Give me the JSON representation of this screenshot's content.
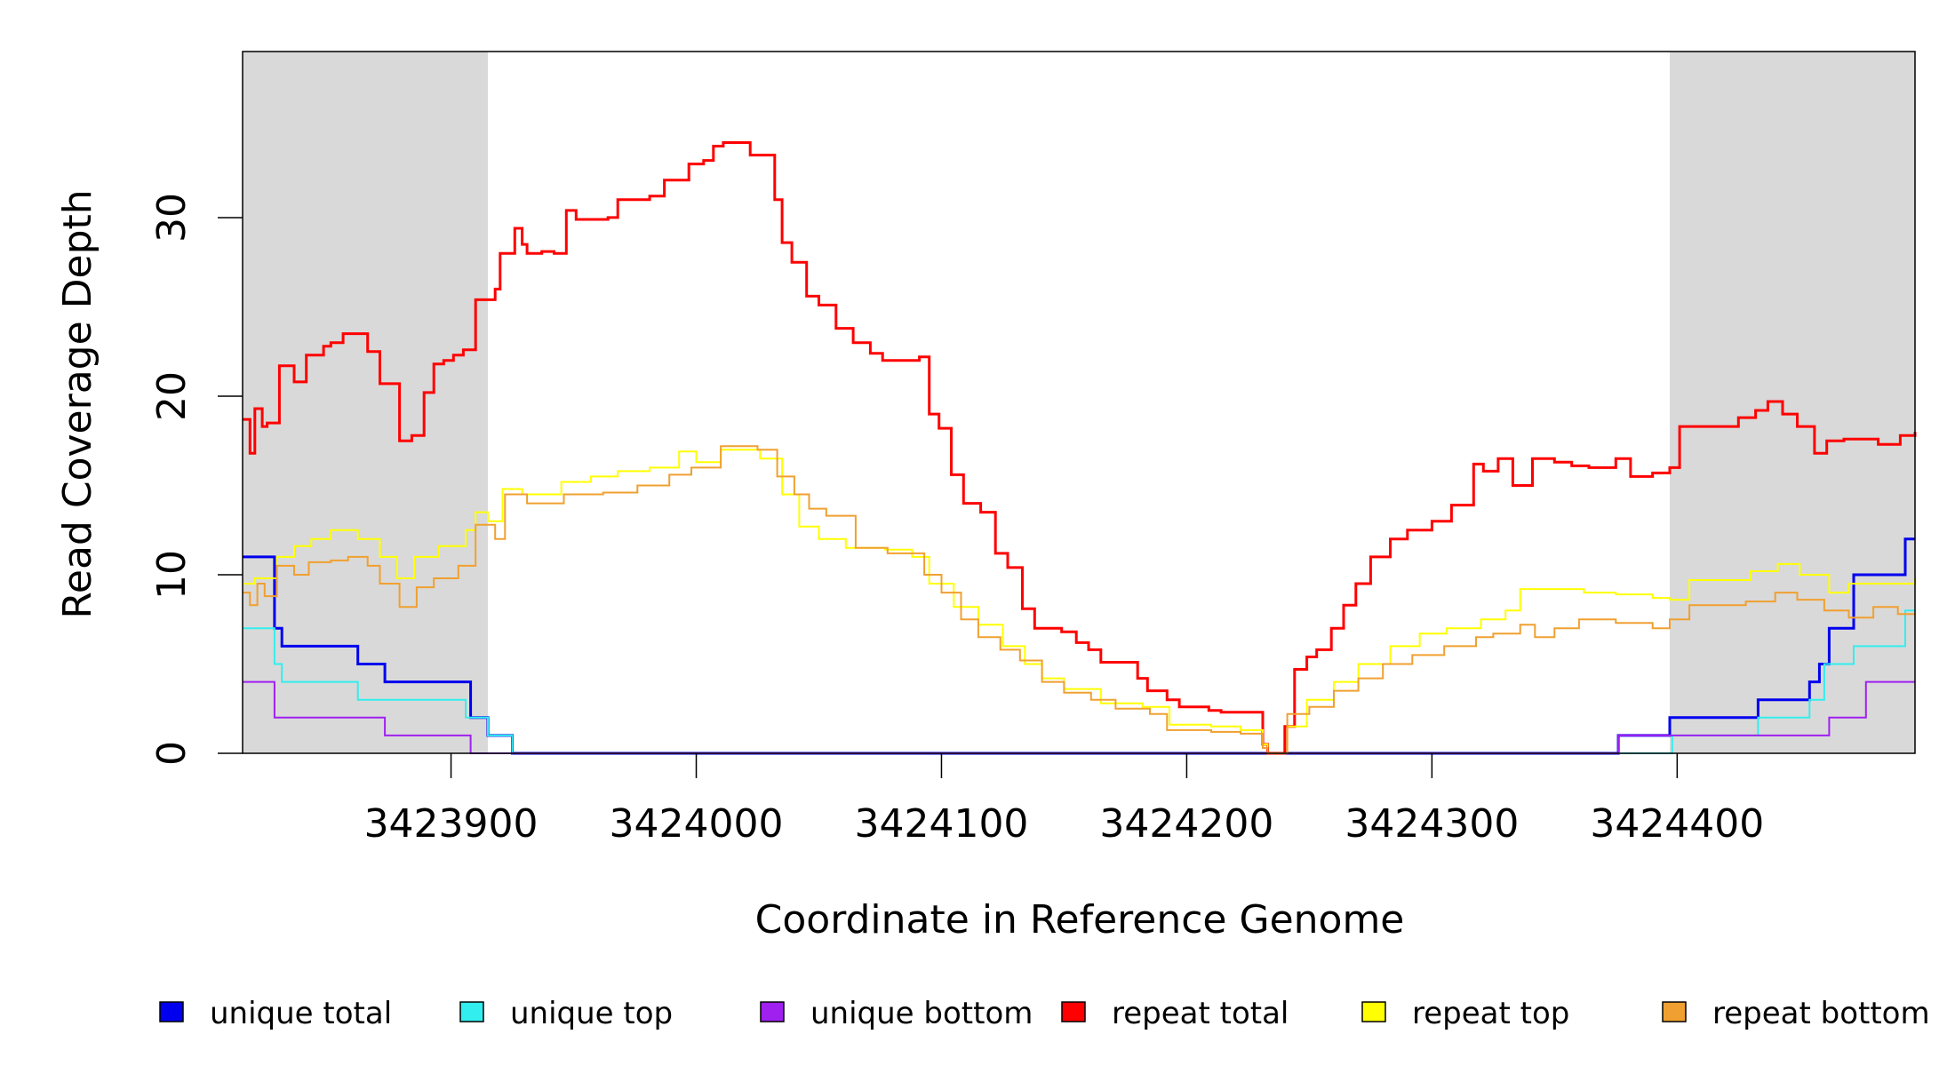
{
  "chart_data": {
    "type": "line",
    "title": "",
    "xlabel": "Coordinate in Reference Genome",
    "ylabel": "Read Coverage Depth",
    "xlim": [
      3423815,
      3424497
    ],
    "ylim": [
      0,
      39.3
    ],
    "x_ticks": [
      3423900,
      3424000,
      3424100,
      3424200,
      3424300,
      3424400
    ],
    "y_ticks": [
      0,
      10,
      20,
      30
    ],
    "shaded_regions": [
      [
        3423815,
        3423915
      ],
      [
        3424397,
        3424497
      ]
    ],
    "series": [
      {
        "name": "unique total",
        "color": "#0000ee",
        "stroke": 3,
        "points": [
          [
            3423815,
            11
          ],
          [
            3423828,
            7
          ],
          [
            3423831,
            6
          ],
          [
            3423862,
            5
          ],
          [
            3423873,
            4
          ],
          [
            3423908,
            2
          ],
          [
            3423915,
            1
          ],
          [
            3423925,
            0
          ],
          [
            3424375,
            0
          ],
          [
            3424376,
            1
          ],
          [
            3424397,
            2
          ],
          [
            3424433,
            3
          ],
          [
            3424454,
            4
          ],
          [
            3424458,
            5
          ],
          [
            3424462,
            7
          ],
          [
            3424472,
            10
          ],
          [
            3424493,
            12
          ],
          [
            3424497,
            12
          ]
        ]
      },
      {
        "name": "unique top",
        "color": "#33eeee",
        "stroke": 2,
        "points": [
          [
            3423815,
            7
          ],
          [
            3423828,
            5
          ],
          [
            3423831,
            4
          ],
          [
            3423862,
            3
          ],
          [
            3423906,
            2
          ],
          [
            3423915,
            1
          ],
          [
            3423925,
            0
          ],
          [
            3424397,
            0
          ],
          [
            3424398,
            1
          ],
          [
            3424433,
            2
          ],
          [
            3424454,
            3
          ],
          [
            3424460,
            5
          ],
          [
            3424472,
            6
          ],
          [
            3424493,
            8
          ],
          [
            3424497,
            8
          ]
        ]
      },
      {
        "name": "unique bottom",
        "color": "#a020f0",
        "stroke": 2,
        "points": [
          [
            3423815,
            4
          ],
          [
            3423828,
            2
          ],
          [
            3423873,
            1
          ],
          [
            3423908,
            0
          ],
          [
            3424375,
            0
          ],
          [
            3424376,
            1
          ],
          [
            3424448,
            1
          ],
          [
            3424462,
            2
          ],
          [
            3424477,
            4
          ],
          [
            3424497,
            4
          ]
        ]
      },
      {
        "name": "repeat total",
        "color": "#ff0000",
        "stroke": 3,
        "points": [
          [
            3423815,
            18.7
          ],
          [
            3423818,
            16.8
          ],
          [
            3423820,
            19.3
          ],
          [
            3423823,
            18.3
          ],
          [
            3423825,
            18.5
          ],
          [
            3423830,
            21.7
          ],
          [
            3423836,
            20.8
          ],
          [
            3423841,
            22.3
          ],
          [
            3423848,
            22.8
          ],
          [
            3423851,
            23.0
          ],
          [
            3423856,
            23.5
          ],
          [
            3423866,
            22.5
          ],
          [
            3423871,
            20.7
          ],
          [
            3423879,
            17.5
          ],
          [
            3423884,
            17.8
          ],
          [
            3423889,
            20.2
          ],
          [
            3423893,
            21.8
          ],
          [
            3423897,
            22.0
          ],
          [
            3423901,
            22.3
          ],
          [
            3423905,
            22.6
          ],
          [
            3423910,
            25.4
          ],
          [
            3423918,
            26.0
          ],
          [
            3423920,
            28.0
          ],
          [
            3423926,
            29.4
          ],
          [
            3423929,
            28.5
          ],
          [
            3423931,
            28.0
          ],
          [
            3423937,
            28.1
          ],
          [
            3423942,
            28.0
          ],
          [
            3423947,
            30.4
          ],
          [
            3423951,
            29.9
          ],
          [
            3423964,
            30.0
          ],
          [
            3423968,
            31.0
          ],
          [
            3423981,
            31.2
          ],
          [
            3423987,
            32.1
          ],
          [
            3423997,
            33.0
          ],
          [
            3424003,
            33.2
          ],
          [
            3424007,
            34.0
          ],
          [
            3424011,
            34.2
          ],
          [
            3424022,
            33.5
          ],
          [
            3424032,
            31.0
          ],
          [
            3424035,
            28.6
          ],
          [
            3424039,
            27.5
          ],
          [
            3424045,
            25.6
          ],
          [
            3424050,
            25.1
          ],
          [
            3424057,
            23.8
          ],
          [
            3424064,
            23.0
          ],
          [
            3424071,
            22.4
          ],
          [
            3424076,
            22.0
          ],
          [
            3424091,
            22.2
          ],
          [
            3424095,
            19.0
          ],
          [
            3424099,
            18.2
          ],
          [
            3424104,
            15.6
          ],
          [
            3424109,
            14.0
          ],
          [
            3424116,
            13.5
          ],
          [
            3424122,
            11.2
          ],
          [
            3424127,
            10.4
          ],
          [
            3424133,
            8.1
          ],
          [
            3424138,
            7.0
          ],
          [
            3424149,
            6.8
          ],
          [
            3424155,
            6.2
          ],
          [
            3424160,
            5.8
          ],
          [
            3424165,
            5.1
          ],
          [
            3424180,
            4.2
          ],
          [
            3424184,
            3.5
          ],
          [
            3424192,
            3.0
          ],
          [
            3424197,
            2.6
          ],
          [
            3424209,
            2.4
          ],
          [
            3424214,
            2.3
          ],
          [
            3424231,
            0.5
          ],
          [
            3424233,
            0
          ],
          [
            3424240,
            1.5
          ],
          [
            3424244,
            4.7
          ],
          [
            3424249,
            5.4
          ],
          [
            3424253,
            5.8
          ],
          [
            3424259,
            7.0
          ],
          [
            3424264,
            8.3
          ],
          [
            3424269,
            9.5
          ],
          [
            3424275,
            11.0
          ],
          [
            3424283,
            12.0
          ],
          [
            3424290,
            12.5
          ],
          [
            3424300,
            13.0
          ],
          [
            3424308,
            13.9
          ],
          [
            3424317,
            16.2
          ],
          [
            3424321,
            15.8
          ],
          [
            3424327,
            16.5
          ],
          [
            3424333,
            15.0
          ],
          [
            3424341,
            16.5
          ],
          [
            3424350,
            16.3
          ],
          [
            3424357,
            16.1
          ],
          [
            3424364,
            16.0
          ],
          [
            3424375,
            16.5
          ],
          [
            3424381,
            15.5
          ],
          [
            3424390,
            15.7
          ],
          [
            3424397,
            16.0
          ],
          [
            3424401,
            18.3
          ],
          [
            3424425,
            18.8
          ],
          [
            3424432,
            19.2
          ],
          [
            3424437,
            19.7
          ],
          [
            3424443,
            19.0
          ],
          [
            3424449,
            18.3
          ],
          [
            3424456,
            16.8
          ],
          [
            3424461,
            17.5
          ],
          [
            3424468,
            17.6
          ],
          [
            3424482,
            17.3
          ],
          [
            3424491,
            17.8
          ],
          [
            3424497,
            18.0
          ]
        ]
      },
      {
        "name": "repeat top",
        "color": "#ffff00",
        "stroke": 2,
        "points": [
          [
            3423815,
            9.5
          ],
          [
            3423820,
            9.8
          ],
          [
            3423829,
            11.0
          ],
          [
            3423836,
            11.6
          ],
          [
            3423843,
            12.0
          ],
          [
            3423851,
            12.5
          ],
          [
            3423862,
            12.0
          ],
          [
            3423871,
            11.0
          ],
          [
            3423878,
            9.8
          ],
          [
            3423885,
            11.0
          ],
          [
            3423895,
            11.6
          ],
          [
            3423906,
            12.5
          ],
          [
            3423910,
            13.5
          ],
          [
            3423915,
            13.0
          ],
          [
            3423921,
            14.8
          ],
          [
            3423929,
            14.5
          ],
          [
            3423935,
            14.5
          ],
          [
            3423945,
            15.2
          ],
          [
            3423957,
            15.5
          ],
          [
            3423968,
            15.8
          ],
          [
            3423981,
            16.0
          ],
          [
            3423993,
            16.9
          ],
          [
            3424000,
            16.3
          ],
          [
            3424010,
            17.0
          ],
          [
            3424026,
            16.5
          ],
          [
            3424035,
            14.5
          ],
          [
            3424042,
            12.7
          ],
          [
            3424050,
            12.0
          ],
          [
            3424061,
            11.5
          ],
          [
            3424077,
            11.4
          ],
          [
            3424088,
            11.0
          ],
          [
            3424095,
            9.5
          ],
          [
            3424105,
            8.2
          ],
          [
            3424115,
            7.2
          ],
          [
            3424125,
            6.0
          ],
          [
            3424134,
            5.0
          ],
          [
            3424141,
            4.2
          ],
          [
            3424150,
            3.6
          ],
          [
            3424165,
            2.8
          ],
          [
            3424182,
            2.6
          ],
          [
            3424193,
            1.6
          ],
          [
            3424210,
            1.5
          ],
          [
            3424222,
            1.3
          ],
          [
            3424231,
            0.5
          ],
          [
            3424233,
            0
          ],
          [
            3424241,
            1.5
          ],
          [
            3424249,
            3.0
          ],
          [
            3424260,
            4.0
          ],
          [
            3424270,
            5.0
          ],
          [
            3424283,
            6.0
          ],
          [
            3424295,
            6.7
          ],
          [
            3424306,
            7.0
          ],
          [
            3424320,
            7.5
          ],
          [
            3424330,
            8.0
          ],
          [
            3424336,
            9.2
          ],
          [
            3424350,
            9.2
          ],
          [
            3424362,
            9.0
          ],
          [
            3424375,
            8.9
          ],
          [
            3424390,
            8.7
          ],
          [
            3424397,
            8.6
          ],
          [
            3424405,
            9.7
          ],
          [
            3424430,
            10.2
          ],
          [
            3424441,
            10.6
          ],
          [
            3424450,
            10.0
          ],
          [
            3424462,
            9.0
          ],
          [
            3424470,
            9.5
          ],
          [
            3424480,
            9.5
          ],
          [
            3424497,
            9.8
          ]
        ]
      },
      {
        "name": "repeat bottom",
        "color": "#f0a030",
        "stroke": 2,
        "points": [
          [
            3423815,
            9.0
          ],
          [
            3423818,
            8.3
          ],
          [
            3423821,
            9.5
          ],
          [
            3423824,
            8.8
          ],
          [
            3423829,
            10.5
          ],
          [
            3423836,
            10.0
          ],
          [
            3423842,
            10.7
          ],
          [
            3423851,
            10.8
          ],
          [
            3423858,
            11.0
          ],
          [
            3423866,
            10.5
          ],
          [
            3423871,
            9.5
          ],
          [
            3423879,
            8.2
          ],
          [
            3423886,
            9.3
          ],
          [
            3423893,
            9.8
          ],
          [
            3423903,
            10.5
          ],
          [
            3423910,
            12.8
          ],
          [
            3423918,
            12.0
          ],
          [
            3423922,
            14.5
          ],
          [
            3423931,
            14.0
          ],
          [
            3423946,
            14.5
          ],
          [
            3423962,
            14.6
          ],
          [
            3423976,
            15.0
          ],
          [
            3423989,
            15.6
          ],
          [
            3423998,
            16.0
          ],
          [
            3424010,
            17.2
          ],
          [
            3424025,
            17.0
          ],
          [
            3424033,
            15.5
          ],
          [
            3424040,
            14.5
          ],
          [
            3424046,
            13.7
          ],
          [
            3424053,
            13.3
          ],
          [
            3424065,
            11.5
          ],
          [
            3424078,
            11.2
          ],
          [
            3424093,
            10.0
          ],
          [
            3424100,
            9.0
          ],
          [
            3424108,
            7.5
          ],
          [
            3424115,
            6.5
          ],
          [
            3424124,
            5.8
          ],
          [
            3424132,
            5.2
          ],
          [
            3424141,
            4.0
          ],
          [
            3424150,
            3.4
          ],
          [
            3424161,
            3.0
          ],
          [
            3424171,
            2.5
          ],
          [
            3424185,
            2.2
          ],
          [
            3424192,
            1.3
          ],
          [
            3424210,
            1.2
          ],
          [
            3424222,
            1.1
          ],
          [
            3424231,
            0.3
          ],
          [
            3424233,
            0
          ],
          [
            3424241,
            2.2
          ],
          [
            3424250,
            2.6
          ],
          [
            3424260,
            3.5
          ],
          [
            3424270,
            4.2
          ],
          [
            3424280,
            5.0
          ],
          [
            3424292,
            5.5
          ],
          [
            3424305,
            6.0
          ],
          [
            3424318,
            6.5
          ],
          [
            3424325,
            6.7
          ],
          [
            3424336,
            7.2
          ],
          [
            3424342,
            6.5
          ],
          [
            3424350,
            7.0
          ],
          [
            3424360,
            7.5
          ],
          [
            3424375,
            7.3
          ],
          [
            3424390,
            7.0
          ],
          [
            3424397,
            7.5
          ],
          [
            3424405,
            8.3
          ],
          [
            3424428,
            8.5
          ],
          [
            3424440,
            9.0
          ],
          [
            3424449,
            8.6
          ],
          [
            3424460,
            8.0
          ],
          [
            3424470,
            7.6
          ],
          [
            3424480,
            8.2
          ],
          [
            3424490,
            7.8
          ],
          [
            3424497,
            7.8
          ]
        ]
      }
    ],
    "legend": [
      "unique total",
      "unique top",
      "unique bottom",
      "repeat total",
      "repeat top",
      "repeat bottom"
    ]
  }
}
